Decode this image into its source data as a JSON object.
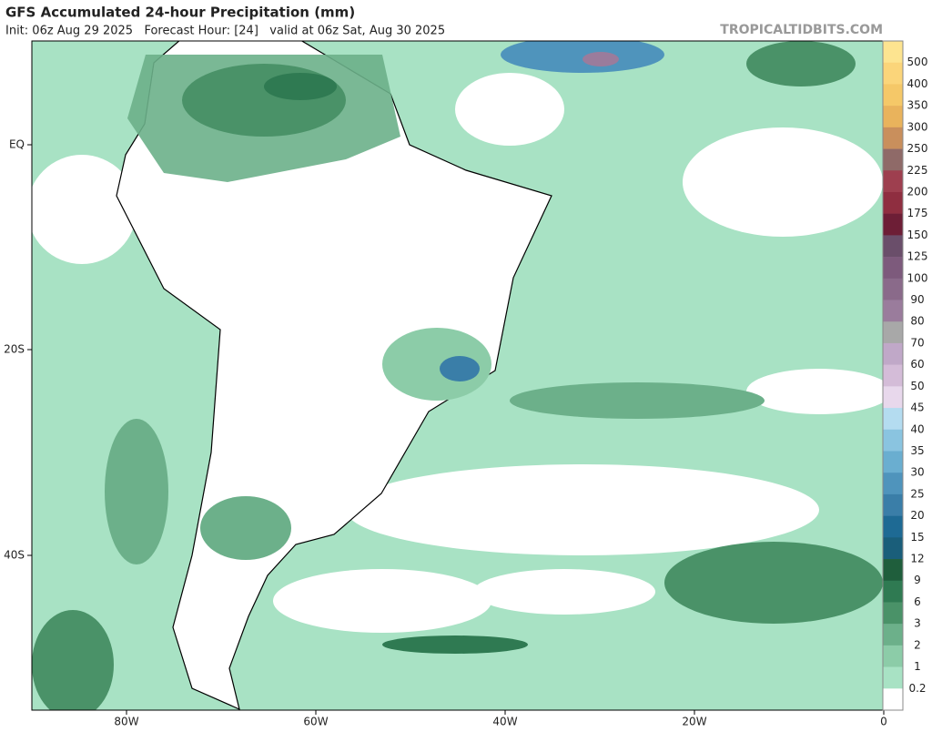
{
  "header": {
    "title": "GFS Accumulated 24-hour Precipitation (mm)",
    "subtitle": "Init: 06z Aug 29 2025   Forecast Hour: [24]   valid at 06z Sat, Aug 30 2025",
    "credit": "TROPICALTIDBITS.COM"
  },
  "map": {
    "lat_labels": [
      "EQ",
      "20S",
      "40S"
    ],
    "lon_labels": [
      "80W",
      "60W",
      "40W",
      "20W",
      "0"
    ]
  },
  "colorbar": {
    "labels": [
      "500",
      "400",
      "350",
      "300",
      "250",
      "225",
      "200",
      "175",
      "150",
      "125",
      "100",
      "90",
      "80",
      "70",
      "60",
      "50",
      "45",
      "40",
      "35",
      "30",
      "25",
      "20",
      "15",
      "12",
      "9",
      "6",
      "3",
      "2",
      "1",
      "0.2"
    ],
    "colors": [
      "#fde490",
      "#fbd57a",
      "#f5c868",
      "#e9b35c",
      "#c98f5c",
      "#8f6a68",
      "#9e3f4f",
      "#8f2e40",
      "#6d1e36",
      "#6a4e6a",
      "#7d5a7c",
      "#8a6a8a",
      "#9a7c9c",
      "#a8a8a8",
      "#c0a8c8",
      "#d4bcd8",
      "#e8d8ec",
      "#b4dcf0",
      "#8ac4e0",
      "#6aaed0",
      "#4f94bc",
      "#3a7ea8",
      "#1e6a94",
      "#1a5e7a",
      "#1f5e3c",
      "#2f7a52",
      "#4a9268",
      "#6cb08a",
      "#8ccca8",
      "#a8e2c4",
      "#ffffff"
    ]
  }
}
